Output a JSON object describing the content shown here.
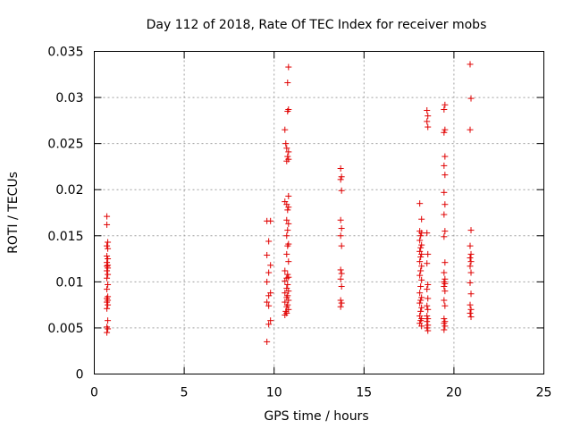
{
  "chart_data": {
    "type": "scatter",
    "title": "Day 112 of 2018, Rate Of TEC Index for receiver mobs",
    "xlabel": "GPS time / hours",
    "ylabel": "ROTI / TECUs",
    "xlim": [
      0,
      25
    ],
    "ylim": [
      0,
      0.035
    ],
    "x_ticks": [
      0,
      5,
      10,
      15,
      20,
      25
    ],
    "x_tick_labels": [
      "0",
      "5",
      "10",
      "15",
      "20",
      "25"
    ],
    "y_ticks": [
      0,
      0.005,
      0.01,
      0.015,
      0.02,
      0.025,
      0.03,
      0.035
    ],
    "y_tick_labels": [
      "0",
      "0.005",
      "0.01",
      "0.015",
      "0.02",
      "0.025",
      "0.03",
      "0.035"
    ],
    "grid": true,
    "marker": "+",
    "color": "#e00000",
    "series": [
      {
        "name": "ROTI",
        "points": [
          [
            0.7,
            0.0171
          ],
          [
            0.7,
            0.0162
          ],
          [
            0.75,
            0.0143
          ],
          [
            0.7,
            0.0139
          ],
          [
            0.75,
            0.0136
          ],
          [
            0.7,
            0.0128
          ],
          [
            0.75,
            0.0125
          ],
          [
            0.7,
            0.0121
          ],
          [
            0.75,
            0.0118
          ],
          [
            0.7,
            0.0117
          ],
          [
            0.75,
            0.0115
          ],
          [
            0.7,
            0.0112
          ],
          [
            0.75,
            0.0108
          ],
          [
            0.7,
            0.0104
          ],
          [
            0.75,
            0.0097
          ],
          [
            0.7,
            0.0092
          ],
          [
            0.75,
            0.0084
          ],
          [
            0.7,
            0.0082
          ],
          [
            0.75,
            0.008
          ],
          [
            0.7,
            0.0078
          ],
          [
            0.75,
            0.0075
          ],
          [
            0.7,
            0.0071
          ],
          [
            0.75,
            0.0058
          ],
          [
            0.7,
            0.0051
          ],
          [
            0.75,
            0.0049
          ],
          [
            0.7,
            0.0045
          ],
          [
            9.6,
            0.0166
          ],
          [
            9.8,
            0.0166
          ],
          [
            9.7,
            0.0144
          ],
          [
            9.6,
            0.0129
          ],
          [
            9.8,
            0.0118
          ],
          [
            9.7,
            0.011
          ],
          [
            9.6,
            0.01
          ],
          [
            9.8,
            0.0088
          ],
          [
            9.7,
            0.0085
          ],
          [
            9.6,
            0.0078
          ],
          [
            9.7,
            0.0074
          ],
          [
            9.8,
            0.0058
          ],
          [
            9.7,
            0.0054
          ],
          [
            9.6,
            0.0035
          ],
          [
            10.8,
            0.0333
          ],
          [
            10.75,
            0.0316
          ],
          [
            10.8,
            0.0287
          ],
          [
            10.75,
            0.0285
          ],
          [
            10.6,
            0.0265
          ],
          [
            10.65,
            0.025
          ],
          [
            10.7,
            0.0245
          ],
          [
            10.8,
            0.0241
          ],
          [
            10.75,
            0.0236
          ],
          [
            10.8,
            0.0233
          ],
          [
            10.7,
            0.0231
          ],
          [
            10.8,
            0.0193
          ],
          [
            10.6,
            0.0187
          ],
          [
            10.7,
            0.0184
          ],
          [
            10.8,
            0.0181
          ],
          [
            10.75,
            0.0178
          ],
          [
            10.7,
            0.0167
          ],
          [
            10.8,
            0.0163
          ],
          [
            10.75,
            0.0156
          ],
          [
            10.7,
            0.015
          ],
          [
            10.8,
            0.0141
          ],
          [
            10.75,
            0.0139
          ],
          [
            10.7,
            0.013
          ],
          [
            10.8,
            0.0122
          ],
          [
            10.6,
            0.0112
          ],
          [
            10.75,
            0.0108
          ],
          [
            10.8,
            0.0105
          ],
          [
            10.7,
            0.0104
          ],
          [
            10.6,
            0.0101
          ],
          [
            10.75,
            0.0097
          ],
          [
            10.7,
            0.0093
          ],
          [
            10.8,
            0.009
          ],
          [
            10.6,
            0.0088
          ],
          [
            10.75,
            0.0085
          ],
          [
            10.7,
            0.0083
          ],
          [
            10.8,
            0.008
          ],
          [
            10.6,
            0.0078
          ],
          [
            10.75,
            0.0075
          ],
          [
            10.7,
            0.0073
          ],
          [
            10.8,
            0.007
          ],
          [
            10.65,
            0.0068
          ],
          [
            10.7,
            0.0066
          ],
          [
            10.6,
            0.0064
          ],
          [
            13.7,
            0.0223
          ],
          [
            13.75,
            0.0214
          ],
          [
            13.7,
            0.0211
          ],
          [
            13.75,
            0.0199
          ],
          [
            13.7,
            0.0167
          ],
          [
            13.75,
            0.0158
          ],
          [
            13.7,
            0.015
          ],
          [
            13.75,
            0.0139
          ],
          [
            13.7,
            0.0113
          ],
          [
            13.75,
            0.0109
          ],
          [
            13.7,
            0.0103
          ],
          [
            13.75,
            0.0095
          ],
          [
            13.7,
            0.008
          ],
          [
            13.75,
            0.0077
          ],
          [
            13.7,
            0.0073
          ],
          [
            18.1,
            0.0185
          ],
          [
            18.2,
            0.0168
          ],
          [
            18.1,
            0.0155
          ],
          [
            18.2,
            0.0153
          ],
          [
            18.15,
            0.015
          ],
          [
            18.1,
            0.0145
          ],
          [
            18.2,
            0.014
          ],
          [
            18.15,
            0.0137
          ],
          [
            18.1,
            0.0133
          ],
          [
            18.2,
            0.013
          ],
          [
            18.15,
            0.0127
          ],
          [
            18.1,
            0.0122
          ],
          [
            18.2,
            0.0117
          ],
          [
            18.15,
            0.0112
          ],
          [
            18.1,
            0.0107
          ],
          [
            18.2,
            0.0102
          ],
          [
            18.15,
            0.0095
          ],
          [
            18.1,
            0.0088
          ],
          [
            18.2,
            0.0083
          ],
          [
            18.15,
            0.008
          ],
          [
            18.1,
            0.0077
          ],
          [
            18.2,
            0.0072
          ],
          [
            18.15,
            0.0068
          ],
          [
            18.1,
            0.0063
          ],
          [
            18.2,
            0.006
          ],
          [
            18.15,
            0.0058
          ],
          [
            18.1,
            0.0055
          ],
          [
            18.2,
            0.0052
          ],
          [
            18.5,
            0.0286
          ],
          [
            18.55,
            0.028
          ],
          [
            18.5,
            0.0274
          ],
          [
            18.55,
            0.0268
          ],
          [
            18.5,
            0.0153
          ],
          [
            18.55,
            0.013
          ],
          [
            18.5,
            0.012
          ],
          [
            18.55,
            0.0097
          ],
          [
            18.5,
            0.0092
          ],
          [
            18.55,
            0.0082
          ],
          [
            18.5,
            0.0074
          ],
          [
            18.55,
            0.007
          ],
          [
            18.5,
            0.0063
          ],
          [
            18.55,
            0.006
          ],
          [
            18.5,
            0.0057
          ],
          [
            18.55,
            0.0053
          ],
          [
            18.5,
            0.005
          ],
          [
            18.55,
            0.0047
          ],
          [
            19.5,
            0.0292
          ],
          [
            19.45,
            0.0287
          ],
          [
            19.5,
            0.0265
          ],
          [
            19.45,
            0.0262
          ],
          [
            19.5,
            0.0236
          ],
          [
            19.45,
            0.0226
          ],
          [
            19.5,
            0.0216
          ],
          [
            19.45,
            0.0197
          ],
          [
            19.5,
            0.0184
          ],
          [
            19.45,
            0.0173
          ],
          [
            19.5,
            0.0155
          ],
          [
            19.45,
            0.0149
          ],
          [
            19.5,
            0.0121
          ],
          [
            19.45,
            0.011
          ],
          [
            19.5,
            0.0103
          ],
          [
            19.45,
            0.01
          ],
          [
            19.5,
            0.0098
          ],
          [
            19.45,
            0.0095
          ],
          [
            19.5,
            0.009
          ],
          [
            19.45,
            0.008
          ],
          [
            19.5,
            0.0074
          ],
          [
            19.45,
            0.006
          ],
          [
            19.5,
            0.0057
          ],
          [
            19.45,
            0.0055
          ],
          [
            19.5,
            0.0052
          ],
          [
            19.45,
            0.0048
          ],
          [
            20.9,
            0.0336
          ],
          [
            20.95,
            0.0299
          ],
          [
            20.9,
            0.0265
          ],
          [
            20.95,
            0.0156
          ],
          [
            20.9,
            0.0139
          ],
          [
            20.95,
            0.013
          ],
          [
            20.9,
            0.0126
          ],
          [
            20.95,
            0.0122
          ],
          [
            20.9,
            0.0117
          ],
          [
            20.95,
            0.011
          ],
          [
            20.9,
            0.0099
          ],
          [
            20.95,
            0.0087
          ],
          [
            20.9,
            0.0075
          ],
          [
            20.95,
            0.007
          ],
          [
            20.9,
            0.0066
          ],
          [
            20.95,
            0.0062
          ]
        ]
      }
    ]
  }
}
